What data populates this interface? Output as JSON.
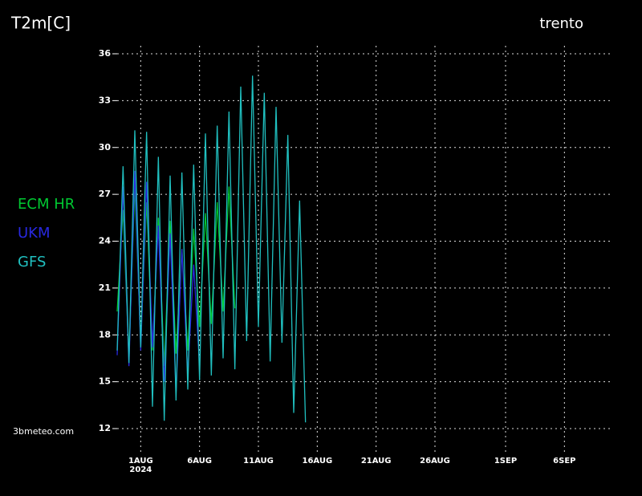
{
  "chart_data": {
    "type": "line",
    "title": "T2m[C]",
    "location": "trento",
    "watermark": "3bmeteo.com",
    "x_year_label": "2024",
    "x": [
      -2,
      -1.5,
      -1,
      -0.5,
      0,
      0.5,
      1,
      1.5,
      2,
      2.5,
      3,
      3.5,
      4,
      4.5,
      5,
      5.5,
      6,
      6.5,
      7,
      7.5,
      8,
      8.5,
      9,
      9.5,
      10,
      10.5,
      11,
      11.5,
      12,
      12.5,
      13,
      13.5,
      14
    ],
    "series": [
      {
        "name": "ECM HR",
        "color": "#00c832",
        "values": [
          19.5,
          26.0,
          16.5,
          27.5,
          17.5,
          26.5,
          17.0,
          25.5,
          16.0,
          25.3,
          16.8,
          23.5,
          17.0,
          24.8,
          18.5,
          25.8,
          18.7,
          26.5,
          19.5,
          27.5,
          19.7,
          null,
          null,
          null,
          null,
          null,
          null,
          null,
          null,
          null,
          null,
          null,
          null
        ]
      },
      {
        "name": "UKM",
        "color": "#2828e0",
        "values": [
          16.7,
          27.5,
          16.0,
          28.5,
          17.0,
          27.8,
          17.2,
          25.0,
          15.0,
          24.5,
          14.3,
          23.5,
          15.5,
          22.5,
          16.0,
          null,
          null,
          null,
          null,
          null,
          null,
          null,
          null,
          null,
          null,
          null,
          null,
          null,
          null,
          null,
          null,
          null,
          null
        ]
      },
      {
        "name": "GFS",
        "color": "#20c0c0",
        "values": [
          17.0,
          28.8,
          16.2,
          31.1,
          17.2,
          31.0,
          13.4,
          29.4,
          12.5,
          28.2,
          13.8,
          28.4,
          14.5,
          28.9,
          15.1,
          30.9,
          15.4,
          31.4,
          16.5,
          32.3,
          15.8,
          33.9,
          17.6,
          34.6,
          18.5,
          33.5,
          16.3,
          32.6,
          17.5,
          30.8,
          13.0,
          26.6,
          12.4
        ]
      }
    ],
    "xlim": [
      -2,
      40
    ],
    "ylim": [
      12,
      36
    ],
    "yticks": [
      12,
      15,
      18,
      21,
      24,
      27,
      30,
      33,
      36
    ],
    "xticks": [
      {
        "value": 0,
        "label": "1AUG"
      },
      {
        "value": 5,
        "label": "6AUG"
      },
      {
        "value": 10,
        "label": "11AUG"
      },
      {
        "value": 15,
        "label": "16AUG"
      },
      {
        "value": 20,
        "label": "21AUG"
      },
      {
        "value": 25,
        "label": "26AUG"
      },
      {
        "value": 31,
        "label": "1SEP"
      },
      {
        "value": 36,
        "label": "6SEP"
      }
    ],
    "grid": true
  }
}
